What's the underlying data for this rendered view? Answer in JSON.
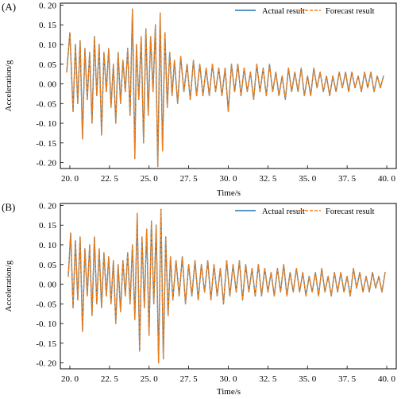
{
  "colors": {
    "actual": "#1f77b4",
    "forecast": "#ff7f0e"
  },
  "chart_data": [
    {
      "type": "line",
      "panel_label": "(A)",
      "xlabel": "Time/s",
      "ylabel": "Acceleration/g",
      "xlim": [
        19.4,
        40.6
      ],
      "ylim": [
        -0.215,
        0.205
      ],
      "xticks": [
        20.0,
        22.5,
        25.0,
        27.5,
        30.0,
        32.5,
        35.0,
        37.5,
        40.0
      ],
      "xtick_labels": [
        "20. 0",
        "22. 5",
        "25. 0",
        "27. 5",
        "30. 0",
        "32. 5",
        "35. 0",
        "37. 5",
        "40. 0"
      ],
      "yticks": [
        -0.2,
        -0.15,
        -0.1,
        -0.05,
        0.0,
        0.05,
        0.1,
        0.15,
        0.2
      ],
      "ytick_labels": [
        "-0. 20",
        "-0. 15",
        "-0. 10",
        "-0. 05",
        "0. 00",
        "0. 05",
        "0. 10",
        "0. 15",
        "0. 20"
      ],
      "legend_position": "top-right",
      "series": [
        {
          "name": "Actual result",
          "style": "solid",
          "x": [
            19.8,
            20.0,
            20.2,
            20.35,
            20.5,
            20.65,
            20.8,
            20.95,
            21.1,
            21.25,
            21.4,
            21.55,
            21.7,
            21.85,
            22.0,
            22.15,
            22.3,
            22.45,
            22.6,
            22.75,
            22.9,
            23.05,
            23.2,
            23.35,
            23.5,
            23.65,
            23.8,
            23.95,
            24.1,
            24.2,
            24.35,
            24.5,
            24.65,
            24.8,
            24.95,
            25.1,
            25.25,
            25.4,
            25.55,
            25.7,
            25.85,
            26.0,
            26.15,
            26.3,
            26.45,
            26.6,
            26.8,
            27.0,
            27.2,
            27.4,
            27.6,
            27.8,
            28.0,
            28.2,
            28.4,
            28.6,
            28.8,
            29.0,
            29.2,
            29.4,
            29.6,
            29.8,
            30.0,
            30.2,
            30.4,
            30.6,
            30.8,
            31.0,
            31.2,
            31.4,
            31.6,
            31.8,
            32.0,
            32.2,
            32.4,
            32.6,
            32.8,
            33.0,
            33.2,
            33.4,
            33.6,
            33.8,
            34.0,
            34.2,
            34.4,
            34.6,
            34.8,
            35.0,
            35.2,
            35.4,
            35.6,
            35.8,
            36.0,
            36.2,
            36.4,
            36.6,
            36.8,
            37.0,
            37.2,
            37.4,
            37.6,
            37.8,
            38.0,
            38.2,
            38.4,
            38.6,
            38.8,
            39.0,
            39.2,
            39.4,
            39.6,
            39.8
          ],
          "y": [
            0.03,
            0.13,
            -0.07,
            0.1,
            -0.05,
            0.11,
            -0.14,
            0.09,
            -0.04,
            0.08,
            -0.1,
            0.12,
            -0.03,
            0.1,
            -0.13,
            0.08,
            -0.02,
            0.09,
            -0.06,
            0.05,
            -0.1,
            0.08,
            -0.05,
            0.06,
            -0.02,
            0.09,
            -0.08,
            0.19,
            -0.19,
            0.1,
            -0.04,
            0.12,
            -0.15,
            0.14,
            -0.08,
            0.12,
            -0.02,
            0.15,
            -0.21,
            0.18,
            -0.17,
            0.13,
            -0.06,
            0.08,
            -0.03,
            0.06,
            -0.05,
            0.07,
            -0.02,
            0.05,
            -0.04,
            0.06,
            -0.03,
            0.05,
            -0.03,
            0.04,
            -0.03,
            0.05,
            -0.02,
            0.04,
            -0.03,
            0.04,
            -0.07,
            0.05,
            -0.02,
            0.05,
            -0.03,
            0.04,
            -0.02,
            0.03,
            -0.04,
            0.05,
            -0.02,
            0.04,
            -0.03,
            0.05,
            -0.02,
            0.03,
            -0.03,
            0.02,
            -0.04,
            0.04,
            -0.02,
            0.03,
            -0.02,
            0.04,
            -0.03,
            0.02,
            -0.03,
            0.04,
            -0.01,
            0.03,
            -0.02,
            0.02,
            -0.03,
            0.02,
            -0.02,
            0.03,
            -0.01,
            0.03,
            -0.02,
            0.03,
            -0.01,
            0.02,
            -0.02,
            0.03,
            -0.01,
            0.03,
            -0.02,
            0.02,
            -0.01,
            0.02
          ]
        },
        {
          "name": "Forecast result",
          "style": "dashed",
          "x": [
            19.8,
            20.0,
            20.2,
            20.35,
            20.5,
            20.65,
            20.8,
            20.95,
            21.1,
            21.25,
            21.4,
            21.55,
            21.7,
            21.85,
            22.0,
            22.15,
            22.3,
            22.45,
            22.6,
            22.75,
            22.9,
            23.05,
            23.2,
            23.35,
            23.5,
            23.65,
            23.8,
            23.95,
            24.1,
            24.2,
            24.35,
            24.5,
            24.65,
            24.8,
            24.95,
            25.1,
            25.25,
            25.4,
            25.55,
            25.7,
            25.85,
            26.0,
            26.15,
            26.3,
            26.45,
            26.6,
            26.8,
            27.0,
            27.2,
            27.4,
            27.6,
            27.8,
            28.0,
            28.2,
            28.4,
            28.6,
            28.8,
            29.0,
            29.2,
            29.4,
            29.6,
            29.8,
            30.0,
            30.2,
            30.4,
            30.6,
            30.8,
            31.0,
            31.2,
            31.4,
            31.6,
            31.8,
            32.0,
            32.2,
            32.4,
            32.6,
            32.8,
            33.0,
            33.2,
            33.4,
            33.6,
            33.8,
            34.0,
            34.2,
            34.4,
            34.6,
            34.8,
            35.0,
            35.2,
            35.4,
            35.6,
            35.8,
            36.0,
            36.2,
            36.4,
            36.6,
            36.8,
            37.0,
            37.2,
            37.4,
            37.6,
            37.8,
            38.0,
            38.2,
            38.4,
            38.6,
            38.8,
            39.0,
            39.2,
            39.4,
            39.6,
            39.8
          ],
          "y": [
            0.03,
            0.13,
            -0.07,
            0.1,
            -0.05,
            0.11,
            -0.14,
            0.09,
            -0.04,
            0.08,
            -0.1,
            0.12,
            -0.03,
            0.1,
            -0.13,
            0.08,
            -0.02,
            0.09,
            -0.06,
            0.05,
            -0.1,
            0.08,
            -0.05,
            0.06,
            -0.02,
            0.09,
            -0.08,
            0.19,
            -0.19,
            0.1,
            -0.04,
            0.12,
            -0.15,
            0.14,
            -0.08,
            0.12,
            -0.02,
            0.15,
            -0.21,
            0.18,
            -0.17,
            0.13,
            -0.06,
            0.08,
            -0.03,
            0.06,
            -0.05,
            0.07,
            -0.02,
            0.05,
            -0.04,
            0.06,
            -0.03,
            0.05,
            -0.03,
            0.04,
            -0.03,
            0.05,
            -0.02,
            0.04,
            -0.03,
            0.04,
            -0.07,
            0.05,
            -0.02,
            0.05,
            -0.03,
            0.04,
            -0.02,
            0.03,
            -0.04,
            0.05,
            -0.02,
            0.04,
            -0.03,
            0.05,
            -0.02,
            0.03,
            -0.03,
            0.02,
            -0.04,
            0.04,
            -0.02,
            0.03,
            -0.02,
            0.04,
            -0.03,
            0.02,
            -0.03,
            0.04,
            -0.01,
            0.03,
            -0.02,
            0.02,
            -0.03,
            0.02,
            -0.02,
            0.03,
            -0.01,
            0.03,
            -0.02,
            0.03,
            -0.01,
            0.02,
            -0.02,
            0.03,
            -0.01,
            0.03,
            -0.02,
            0.02,
            -0.01,
            0.02
          ]
        }
      ]
    },
    {
      "type": "line",
      "panel_label": "(B)",
      "xlabel": "Time/s",
      "ylabel": "Acceleration/g",
      "xlim": [
        19.4,
        40.6
      ],
      "ylim": [
        -0.215,
        0.205
      ],
      "xticks": [
        20.0,
        22.5,
        25.0,
        27.5,
        30.0,
        32.5,
        35.0,
        37.5,
        40.0
      ],
      "xtick_labels": [
        "20. 0",
        "22. 5",
        "25. 0",
        "27. 5",
        "30. 0",
        "32. 5",
        "35. 0",
        "37. 5",
        "40. 0"
      ],
      "yticks": [
        -0.2,
        -0.15,
        -0.1,
        -0.05,
        0.0,
        0.05,
        0.1,
        0.15,
        0.2
      ],
      "ytick_labels": [
        "-0. 20",
        "-0. 15",
        "-0. 10",
        "-0. 05",
        "0. 00",
        "0. 05",
        "0. 10",
        "0. 15",
        "0. 20"
      ],
      "legend_position": "top-right",
      "series": [
        {
          "name": "Actual result",
          "style": "solid",
          "x": [
            19.9,
            20.05,
            20.2,
            20.35,
            20.5,
            20.65,
            20.8,
            20.95,
            21.1,
            21.25,
            21.4,
            21.55,
            21.7,
            21.85,
            22.0,
            22.15,
            22.3,
            22.45,
            22.6,
            22.75,
            22.9,
            23.05,
            23.2,
            23.35,
            23.5,
            23.65,
            23.8,
            23.95,
            24.1,
            24.25,
            24.4,
            24.55,
            24.7,
            24.85,
            25.0,
            25.15,
            25.3,
            25.45,
            25.6,
            25.75,
            25.9,
            26.05,
            26.2,
            26.35,
            26.5,
            26.7,
            26.9,
            27.1,
            27.3,
            27.5,
            27.7,
            27.9,
            28.1,
            28.3,
            28.5,
            28.7,
            28.9,
            29.1,
            29.3,
            29.5,
            29.7,
            29.9,
            30.1,
            30.3,
            30.5,
            30.7,
            30.9,
            31.1,
            31.3,
            31.5,
            31.7,
            31.9,
            32.1,
            32.3,
            32.5,
            32.7,
            32.9,
            33.1,
            33.3,
            33.5,
            33.7,
            33.9,
            34.1,
            34.3,
            34.5,
            34.7,
            34.9,
            35.1,
            35.3,
            35.5,
            35.7,
            35.9,
            36.1,
            36.3,
            36.5,
            36.7,
            36.9,
            37.1,
            37.3,
            37.5,
            37.7,
            37.9,
            38.1,
            38.3,
            38.5,
            38.7,
            38.9,
            39.1,
            39.3,
            39.5,
            39.7,
            39.9
          ],
          "y": [
            0.02,
            0.13,
            -0.06,
            0.11,
            -0.04,
            0.12,
            -0.12,
            0.09,
            -0.03,
            0.1,
            -0.08,
            0.12,
            -0.05,
            0.09,
            -0.06,
            0.08,
            -0.03,
            0.07,
            -0.05,
            0.06,
            -0.1,
            0.05,
            -0.07,
            0.06,
            -0.03,
            0.08,
            -0.05,
            0.1,
            -0.09,
            0.18,
            -0.17,
            0.12,
            -0.06,
            0.14,
            -0.13,
            0.16,
            -0.05,
            0.15,
            -0.2,
            0.19,
            -0.19,
            0.12,
            -0.08,
            0.07,
            -0.04,
            0.06,
            -0.03,
            0.07,
            -0.05,
            0.05,
            -0.03,
            0.06,
            -0.04,
            0.05,
            -0.02,
            0.06,
            -0.04,
            0.05,
            -0.03,
            0.04,
            -0.05,
            0.06,
            -0.03,
            0.05,
            -0.02,
            0.06,
            -0.04,
            0.05,
            -0.02,
            0.04,
            -0.03,
            0.05,
            -0.03,
            0.04,
            -0.02,
            0.03,
            -0.03,
            0.04,
            -0.02,
            0.05,
            -0.03,
            0.03,
            -0.02,
            0.04,
            -0.02,
            0.03,
            -0.03,
            0.02,
            -0.02,
            0.03,
            -0.03,
            0.04,
            -0.02,
            0.02,
            -0.03,
            0.03,
            -0.02,
            0.03,
            -0.02,
            0.02,
            -0.03,
            0.04,
            -0.01,
            0.03,
            -0.02,
            0.02,
            -0.02,
            0.03,
            -0.01,
            0.02,
            -0.02,
            0.03
          ]
        },
        {
          "name": "Forecast result",
          "style": "dashed",
          "x": [
            19.9,
            20.05,
            20.2,
            20.35,
            20.5,
            20.65,
            20.8,
            20.95,
            21.1,
            21.25,
            21.4,
            21.55,
            21.7,
            21.85,
            22.0,
            22.15,
            22.3,
            22.45,
            22.6,
            22.75,
            22.9,
            23.05,
            23.2,
            23.35,
            23.5,
            23.65,
            23.8,
            23.95,
            24.1,
            24.25,
            24.4,
            24.55,
            24.7,
            24.85,
            25.0,
            25.15,
            25.3,
            25.45,
            25.6,
            25.75,
            25.9,
            26.05,
            26.2,
            26.35,
            26.5,
            26.7,
            26.9,
            27.1,
            27.3,
            27.5,
            27.7,
            27.9,
            28.1,
            28.3,
            28.5,
            28.7,
            28.9,
            29.1,
            29.3,
            29.5,
            29.7,
            29.9,
            30.1,
            30.3,
            30.5,
            30.7,
            30.9,
            31.1,
            31.3,
            31.5,
            31.7,
            31.9,
            32.1,
            32.3,
            32.5,
            32.7,
            32.9,
            33.1,
            33.3,
            33.5,
            33.7,
            33.9,
            34.1,
            34.3,
            34.5,
            34.7,
            34.9,
            35.1,
            35.3,
            35.5,
            35.7,
            35.9,
            36.1,
            36.3,
            36.5,
            36.7,
            36.9,
            37.1,
            37.3,
            37.5,
            37.7,
            37.9,
            38.1,
            38.3,
            38.5,
            38.7,
            38.9,
            39.1,
            39.3,
            39.5,
            39.7,
            39.9
          ],
          "y": [
            0.02,
            0.13,
            -0.06,
            0.11,
            -0.04,
            0.12,
            -0.12,
            0.09,
            -0.03,
            0.1,
            -0.08,
            0.12,
            -0.05,
            0.09,
            -0.06,
            0.08,
            -0.03,
            0.07,
            -0.05,
            0.06,
            -0.1,
            0.05,
            -0.07,
            0.06,
            -0.03,
            0.08,
            -0.05,
            0.1,
            -0.09,
            0.18,
            -0.17,
            0.12,
            -0.06,
            0.14,
            -0.13,
            0.16,
            -0.05,
            0.15,
            -0.2,
            0.19,
            -0.19,
            0.12,
            -0.08,
            0.07,
            -0.04,
            0.06,
            -0.03,
            0.07,
            -0.05,
            0.05,
            -0.03,
            0.06,
            -0.04,
            0.05,
            -0.02,
            0.06,
            -0.04,
            0.05,
            -0.03,
            0.04,
            -0.05,
            0.06,
            -0.03,
            0.05,
            -0.02,
            0.06,
            -0.04,
            0.05,
            -0.02,
            0.04,
            -0.03,
            0.05,
            -0.03,
            0.04,
            -0.02,
            0.03,
            -0.03,
            0.04,
            -0.02,
            0.05,
            -0.03,
            0.03,
            -0.02,
            0.04,
            -0.02,
            0.03,
            -0.03,
            0.02,
            -0.02,
            0.03,
            -0.03,
            0.04,
            -0.02,
            0.02,
            -0.03,
            0.03,
            -0.02,
            0.03,
            -0.02,
            0.02,
            -0.03,
            0.04,
            -0.01,
            0.03,
            -0.02,
            0.02,
            -0.02,
            0.03,
            -0.01,
            0.02,
            -0.02,
            0.03
          ]
        }
      ]
    }
  ]
}
